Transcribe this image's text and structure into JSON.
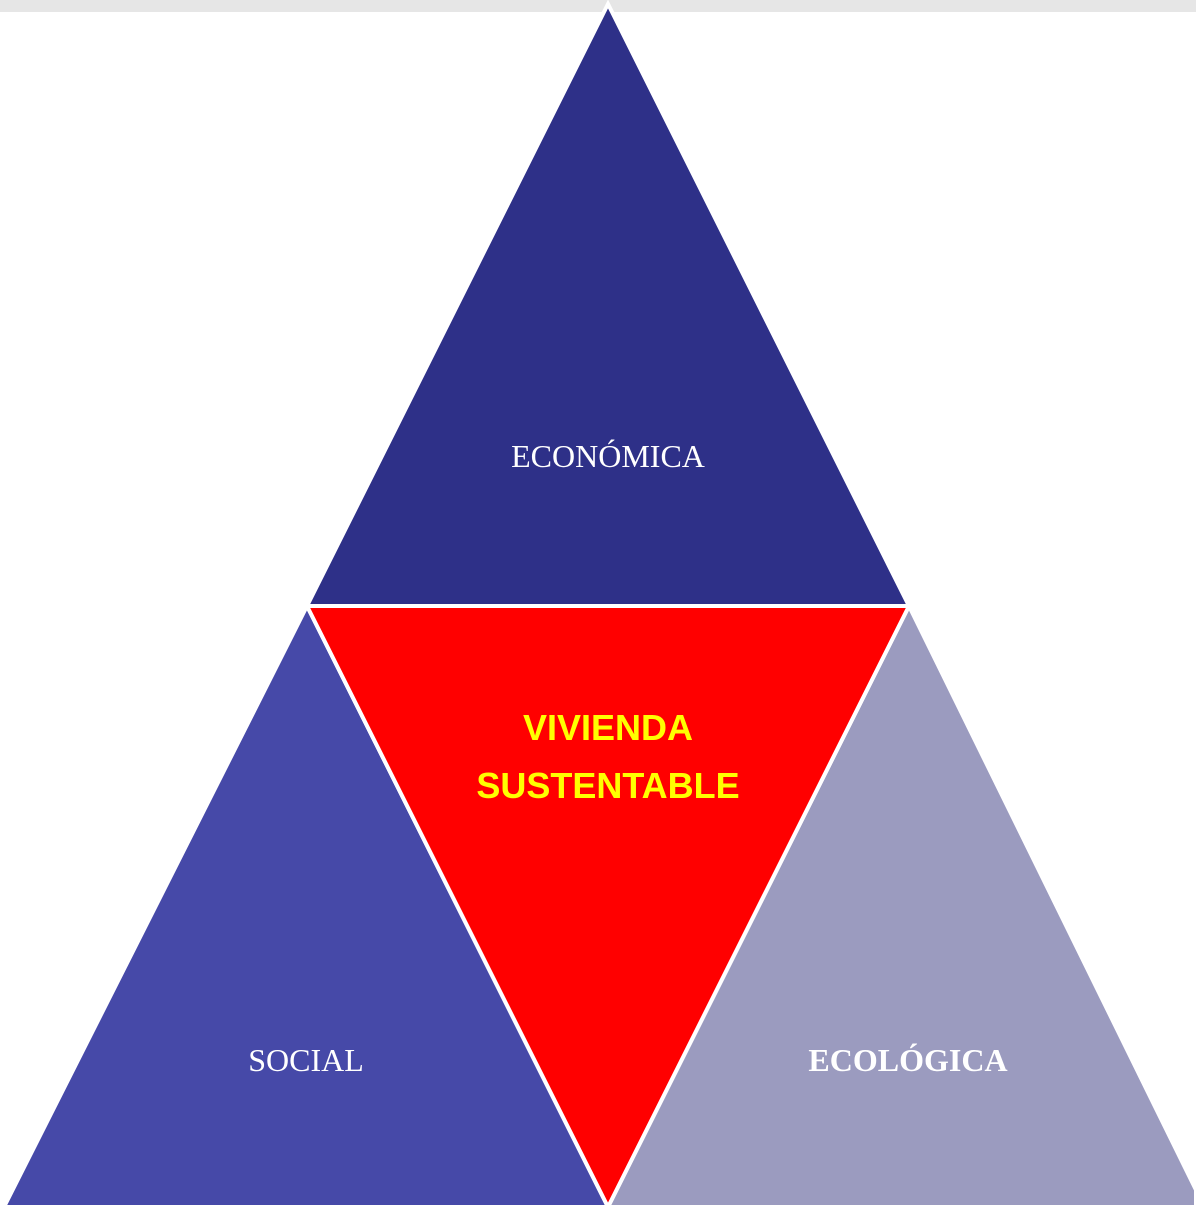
{
  "nodes": [
    {
      "label": "ECONÓMICA"
    },
    {
      "label": "SOCIAL"
    },
    {
      "label": "ECOLÓGICA"
    },
    {
      "label_lines": [
        "VIVIENDA",
        "SUSTENTABLE"
      ]
    }
  ]
}
